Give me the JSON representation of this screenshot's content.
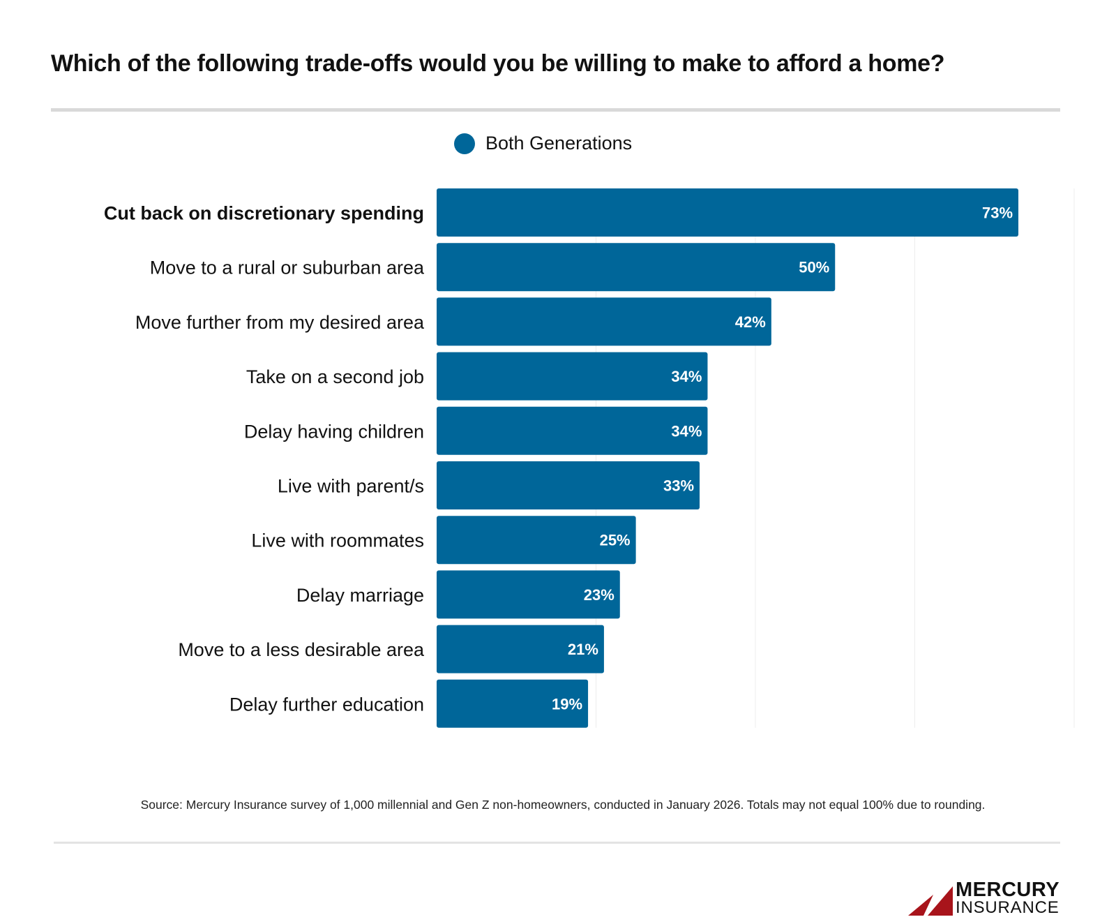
{
  "chart_data": {
    "type": "bar",
    "orientation": "horizontal",
    "title": "Which of the following trade-offs would you be willing to make to afford a home?",
    "legend": {
      "entries": [
        "Both Generations"
      ],
      "placement": "top"
    },
    "categories": [
      "Cut back on discretionary spending",
      "Move to a rural or suburban area",
      "Move further from my desired area",
      "Take on a second job",
      "Delay having children",
      "Live with parent/s",
      "Live with roommates",
      "Delay marriage",
      "Move to a less desirable area",
      "Delay further education"
    ],
    "highlighted_category": "Cut back on discretionary spending",
    "series": [
      {
        "name": "Both Generations",
        "values": [
          73,
          50,
          42,
          34,
          34,
          33,
          25,
          23,
          21,
          19
        ]
      }
    ],
    "data_labels": [
      "73%",
      "50%",
      "42%",
      "34%",
      "34%",
      "33%",
      "25%",
      "23%",
      "21%",
      "19%"
    ],
    "xlim": [
      0,
      80
    ],
    "gridlines": [
      20,
      40,
      60,
      80
    ],
    "grid": true,
    "bar_color": "#006699"
  },
  "source": "Source: Mercury Insurance survey of 1,000 millennial and Gen Z non-homeowners, conducted in January 2026. Totals may not equal 100% due to rounding.",
  "logo": {
    "line1": "MERCURY",
    "line2": "INSURANCE",
    "color": "#a8141b"
  }
}
